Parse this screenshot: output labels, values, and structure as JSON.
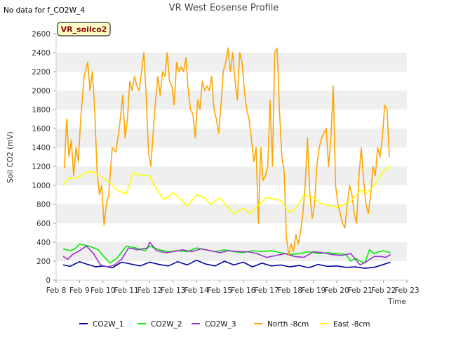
{
  "note": "No data for f_CO2W_4",
  "badge": "VR_soilco2",
  "chart_data": {
    "type": "line",
    "title": "VR West Eosense Profile",
    "xlabel": "Time",
    "ylabel": "Soil CO2 (mV)",
    "xlim": [
      8,
      23
    ],
    "ylim": [
      0,
      2600
    ],
    "x_ticks": [
      8,
      9,
      10,
      11,
      12,
      13,
      14,
      15,
      16,
      17,
      18,
      19,
      20,
      21,
      22,
      23
    ],
    "x_tick_labels": [
      "Feb 8",
      "Feb 9",
      "Feb 10",
      "Feb 11",
      "Feb 12",
      "Feb 13",
      "Feb 14",
      "Feb 15",
      "Feb 16",
      "Feb 17",
      "Feb 18",
      "Feb 19",
      "Feb 20",
      "Feb 21",
      "Feb 22",
      "Feb 23"
    ],
    "y_ticks": [
      0,
      200,
      400,
      600,
      800,
      1000,
      1200,
      1400,
      1600,
      1800,
      2000,
      2200,
      2400,
      2600
    ],
    "grid": "horizontal alternating bands",
    "legend_position": "bottom",
    "series": [
      {
        "name": "CO2W_1",
        "color": "#0000aa",
        "x": [
          8.3,
          8.6,
          9.0,
          9.3,
          9.7,
          10.0,
          10.4,
          10.8,
          11.2,
          11.6,
          12.0,
          12.4,
          12.8,
          13.2,
          13.6,
          14.0,
          14.4,
          14.8,
          15.2,
          15.6,
          16.0,
          16.4,
          16.8,
          17.2,
          17.6,
          18.0,
          18.4,
          18.8,
          19.2,
          19.6,
          20.0,
          20.4,
          20.8,
          21.2,
          21.6,
          22.0,
          22.3
        ],
        "y": [
          160,
          145,
          195,
          170,
          140,
          150,
          130,
          190,
          170,
          150,
          190,
          165,
          150,
          195,
          160,
          210,
          170,
          150,
          200,
          160,
          190,
          140,
          180,
          150,
          160,
          140,
          155,
          130,
          165,
          145,
          150,
          135,
          140,
          125,
          135,
          165,
          190
        ]
      },
      {
        "name": "CO2W_2",
        "color": "#00ee00",
        "x": [
          8.3,
          8.6,
          8.8,
          9.0,
          9.4,
          9.8,
          10.0,
          10.3,
          10.6,
          11.0,
          11.4,
          11.8,
          12.0,
          12.4,
          12.8,
          13.2,
          13.6,
          14.0,
          14.4,
          14.8,
          15.2,
          15.6,
          16.0,
          16.4,
          16.8,
          17.2,
          17.6,
          18.0,
          18.4,
          18.8,
          19.2,
          19.6,
          20.0,
          20.4,
          20.6,
          20.8,
          21.0,
          21.2,
          21.4,
          21.6,
          21.8,
          22.0,
          22.3
        ],
        "y": [
          330,
          310,
          330,
          380,
          360,
          320,
          260,
          180,
          230,
          360,
          340,
          310,
          360,
          320,
          300,
          310,
          300,
          340,
          320,
          300,
          320,
          300,
          290,
          310,
          300,
          310,
          290,
          270,
          280,
          300,
          280,
          290,
          280,
          270,
          200,
          230,
          200,
          180,
          320,
          280,
          300,
          310,
          290
        ]
      },
      {
        "name": "CO2W_3",
        "color": "#9932cc",
        "x": [
          8.3,
          8.5,
          8.7,
          9.0,
          9.3,
          9.6,
          9.9,
          10.2,
          10.5,
          10.8,
          11.1,
          11.5,
          11.9,
          12.0,
          12.3,
          12.7,
          13.0,
          13.4,
          13.8,
          14.2,
          14.6,
          15.0,
          15.4,
          15.8,
          16.2,
          16.6,
          17.0,
          17.4,
          17.8,
          18.2,
          18.6,
          19.0,
          19.4,
          19.8,
          20.2,
          20.6,
          21.0,
          21.3,
          21.6,
          21.9,
          22.1,
          22.3
        ],
        "y": [
          250,
          220,
          270,
          310,
          360,
          280,
          160,
          140,
          160,
          220,
          340,
          320,
          340,
          400,
          310,
          290,
          300,
          320,
          300,
          330,
          310,
          290,
          310,
          300,
          300,
          280,
          240,
          260,
          280,
          250,
          240,
          300,
          290,
          270,
          260,
          280,
          160,
          200,
          250,
          250,
          240,
          270
        ]
      },
      {
        "name": "North -8cm",
        "color": "#ffa500",
        "x": [
          8.35,
          8.45,
          8.55,
          8.65,
          8.75,
          8.85,
          8.95,
          9.05,
          9.2,
          9.35,
          9.45,
          9.55,
          9.65,
          9.75,
          9.85,
          9.95,
          10.05,
          10.15,
          10.25,
          10.4,
          10.55,
          10.7,
          10.85,
          10.95,
          11.05,
          11.15,
          11.25,
          11.35,
          11.45,
          11.55,
          11.65,
          11.75,
          11.85,
          11.95,
          12.05,
          12.15,
          12.25,
          12.35,
          12.45,
          12.55,
          12.65,
          12.75,
          12.85,
          12.95,
          13.05,
          13.15,
          13.25,
          13.35,
          13.45,
          13.55,
          13.65,
          13.75,
          13.85,
          13.95,
          14.05,
          14.15,
          14.25,
          14.35,
          14.45,
          14.55,
          14.65,
          14.75,
          14.85,
          14.95,
          15.05,
          15.15,
          15.25,
          15.35,
          15.45,
          15.55,
          15.65,
          15.75,
          15.85,
          15.95,
          16.05,
          16.15,
          16.25,
          16.35,
          16.45,
          16.55,
          16.65,
          16.75,
          16.85,
          16.95,
          17.05,
          17.15,
          17.25,
          17.35,
          17.45,
          17.55,
          17.65,
          17.75,
          17.85,
          17.95,
          18.05,
          18.15,
          18.25,
          18.35,
          18.45,
          18.55,
          18.65,
          18.75,
          18.85,
          18.95,
          19.05,
          19.15,
          19.25,
          19.35,
          19.45,
          19.55,
          19.65,
          19.75,
          19.85,
          19.95,
          20.05,
          20.15,
          20.25,
          20.35,
          20.45,
          20.55,
          20.65,
          20.75,
          20.85,
          20.95,
          21.05,
          21.15,
          21.25,
          21.35,
          21.45,
          21.55,
          21.65,
          21.75,
          21.85,
          21.95,
          22.05,
          22.15,
          22.25
        ],
        "y": [
          1180,
          1700,
          1300,
          1480,
          1100,
          1400,
          1250,
          1700,
          2150,
          2300,
          2000,
          2200,
          1800,
          1150,
          900,
          1000,
          580,
          800,
          900,
          1400,
          1350,
          1600,
          1950,
          1500,
          1700,
          2100,
          2000,
          2150,
          2050,
          2000,
          2200,
          2400,
          1950,
          1350,
          1200,
          1550,
          1900,
          2150,
          1950,
          2200,
          2150,
          2400,
          2100,
          2050,
          1850,
          2300,
          2200,
          2250,
          2200,
          2350,
          2000,
          1800,
          1750,
          1500,
          1900,
          1800,
          2100,
          2000,
          2050,
          2000,
          2150,
          1800,
          1700,
          1550,
          1850,
          2200,
          2300,
          2450,
          2200,
          2400,
          2100,
          1900,
          2400,
          2300,
          2000,
          1800,
          1700,
          1500,
          1250,
          1400,
          600,
          1400,
          1050,
          1100,
          1200,
          1900,
          1200,
          2400,
          2450,
          1800,
          1300,
          1150,
          450,
          260,
          380,
          300,
          480,
          380,
          500,
          700,
          1000,
          1500,
          900,
          650,
          800,
          1200,
          1400,
          1500,
          1550,
          1600,
          1200,
          1500,
          2050,
          1000,
          800,
          700,
          600,
          550,
          800,
          1000,
          900,
          700,
          600,
          1100,
          1400,
          1050,
          800,
          700,
          900,
          1200,
          1100,
          1400,
          1300,
          1500,
          1850,
          1800,
          1300
        ]
      },
      {
        "name": "East -8cm",
        "color": "#ffff00",
        "x": [
          8.3,
          8.5,
          8.8,
          9.0,
          9.3,
          9.6,
          10.0,
          10.3,
          10.6,
          11.0,
          11.3,
          11.6,
          12.0,
          12.3,
          12.6,
          13.0,
          13.3,
          13.6,
          14.0,
          14.3,
          14.6,
          15.0,
          15.3,
          15.6,
          16.0,
          16.3,
          16.6,
          17.0,
          17.3,
          17.6,
          18.0,
          18.3,
          18.6,
          19.0,
          19.3,
          19.6,
          20.0,
          20.3,
          20.6,
          21.0,
          21.3,
          21.6,
          22.0,
          22.3
        ],
        "y": [
          1000,
          1070,
          1080,
          1090,
          1140,
          1140,
          1080,
          1030,
          950,
          910,
          1130,
          1110,
          1100,
          960,
          850,
          920,
          860,
          780,
          900,
          880,
          800,
          870,
          780,
          700,
          760,
          700,
          780,
          870,
          860,
          840,
          710,
          780,
          900,
          870,
          810,
          790,
          770,
          800,
          830,
          950,
          920,
          1000,
          1150,
          1200
        ]
      }
    ]
  }
}
